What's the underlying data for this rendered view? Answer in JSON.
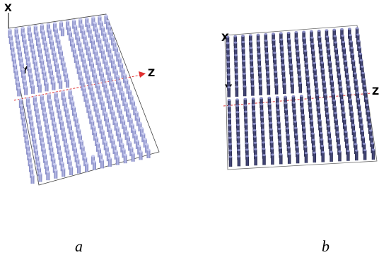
{
  "panel_a": {
    "caption": "a",
    "axis_x": "X",
    "axis_y": "Y",
    "axis_z": "Z",
    "pillar_color": "#9ea3d6",
    "pillar_shadow": "#6f74b0"
  },
  "panel_b": {
    "caption": "b",
    "axis_x": "X",
    "axis_y": "Y",
    "axis_z": "Z",
    "pillar_color": "#3a3c66",
    "pillar_highlight": "#8d90c8"
  },
  "axis_line_color": "#e03030"
}
